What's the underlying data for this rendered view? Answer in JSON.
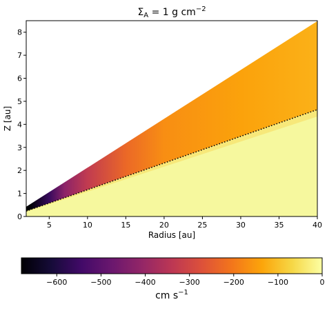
{
  "chart_data": {
    "type": "heatmap",
    "title": "Σ_A = 1 g cm⁻²",
    "title_parts": {
      "main": "Σ",
      "sub": "A",
      "rest": " = 1 g cm",
      "sup": "−2"
    },
    "xlabel": "Radius [au]",
    "ylabel": "Z [au]",
    "xlim": [
      2,
      40
    ],
    "ylim": [
      0,
      8.5
    ],
    "xticks": [
      5,
      10,
      15,
      20,
      25,
      30,
      35,
      40
    ],
    "yticks": [
      0,
      1,
      2,
      3,
      4,
      5,
      6,
      7,
      8
    ],
    "grid": false,
    "regions": {
      "upper_boundary_z_over_r": 0.212,
      "dotted_boundary_z_over_r": 0.116,
      "lower_region_value_cm_s": 0
    },
    "field_samples": [
      {
        "r": 2.5,
        "z_top": 0.5,
        "value": -680
      },
      {
        "r": 5,
        "z_top": 1.0,
        "value": -560
      },
      {
        "r": 7,
        "z_top": 1.5,
        "value": -420
      },
      {
        "r": 10,
        "z_top": 2.1,
        "value": -330
      },
      {
        "r": 15,
        "z_top": 3.2,
        "value": -230
      },
      {
        "r": 20,
        "z_top": 4.25,
        "value": -170
      },
      {
        "r": 30,
        "z_top": 6.35,
        "value": -140
      },
      {
        "r": 40,
        "z_top": 8.45,
        "value": -120
      }
    ],
    "colorbar": {
      "colormap": "inferno",
      "range": [
        -680,
        0
      ],
      "ticks": [
        -600,
        -500,
        -400,
        -300,
        -200,
        -100,
        0
      ],
      "tick_labels": [
        "−600",
        "−500",
        "−400",
        "−300",
        "−200",
        "−100",
        "0"
      ],
      "label_parts": {
        "main": "cm s",
        "sup": "−1"
      }
    },
    "colors": {
      "dotted_line": "#000000",
      "lower_fill": "#f6f89e",
      "band_fill": "#f8e371"
    }
  }
}
